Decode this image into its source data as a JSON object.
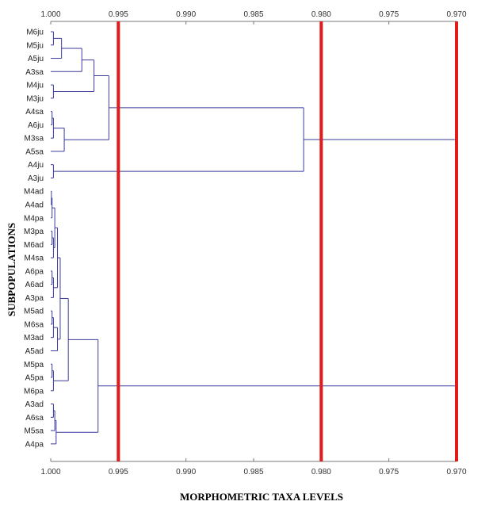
{
  "chart_data": {
    "type": "dendrogram",
    "xlabel": "MORPHOMETRIC TAXA LEVELS",
    "ylabel": "SUBPOPULATIONS",
    "xlim": [
      1.0,
      0.97
    ],
    "x_ticks": [
      "1.000",
      "0.995",
      "0.990",
      "0.985",
      "0.980",
      "0.975",
      "0.970"
    ],
    "leaves": [
      "M6ju",
      "M5ju",
      "A5ju",
      "A3sa",
      "M4ju",
      "M3ju",
      "A4sa",
      "A6ju",
      "M3sa",
      "A5sa",
      "A4ju",
      "A3ju",
      "M4ad",
      "A4ad",
      "M4pa",
      "M3pa",
      "M6ad",
      "M4sa",
      "A6pa",
      "A6ad",
      "A3pa",
      "M5ad",
      "M6sa",
      "M3ad",
      "A5ad",
      "M5pa",
      "A5pa",
      "M6pa",
      "A3ad",
      "A6sa",
      "M5sa",
      "A4pa"
    ],
    "merges": [
      {
        "id": "c1",
        "children": [
          "M6ju",
          "M5ju"
        ],
        "height": 0.9998
      },
      {
        "id": "c2",
        "children": [
          "c1",
          "A5ju"
        ],
        "height": 0.9992
      },
      {
        "id": "c3",
        "children": [
          "c2",
          "A3sa"
        ],
        "height": 0.9977
      },
      {
        "id": "c4",
        "children": [
          "M4ju",
          "M3ju"
        ],
        "height": 0.9998
      },
      {
        "id": "c5",
        "children": [
          "c3",
          "c4"
        ],
        "height": 0.9968
      },
      {
        "id": "c6",
        "children": [
          "A4sa",
          "A6ju"
        ],
        "height": 0.9999
      },
      {
        "id": "c7",
        "children": [
          "c6",
          "M3sa"
        ],
        "height": 0.9998
      },
      {
        "id": "c8",
        "children": [
          "c7",
          "A5sa"
        ],
        "height": 0.999
      },
      {
        "id": "c9",
        "children": [
          "c5",
          "c8"
        ],
        "height": 0.9957
      },
      {
        "id": "c10",
        "children": [
          "A4ju",
          "A3ju"
        ],
        "height": 0.9998
      },
      {
        "id": "c11",
        "children": [
          "c9",
          "c10"
        ],
        "height": 0.9813
      },
      {
        "id": "d1",
        "children": [
          "M4ad",
          "A4ad"
        ],
        "height": 0.99995
      },
      {
        "id": "d2",
        "children": [
          "d1",
          "M4pa"
        ],
        "height": 0.9999
      },
      {
        "id": "d3",
        "children": [
          "M3pa",
          "M6ad"
        ],
        "height": 0.9999
      },
      {
        "id": "d4",
        "children": [
          "d3",
          "M4sa"
        ],
        "height": 0.9998
      },
      {
        "id": "d5",
        "children": [
          "d2",
          "d4"
        ],
        "height": 0.9997
      },
      {
        "id": "d6",
        "children": [
          "A6pa",
          "A6ad"
        ],
        "height": 0.9999
      },
      {
        "id": "d7",
        "children": [
          "d6",
          "A3pa"
        ],
        "height": 0.9998
      },
      {
        "id": "d8",
        "children": [
          "d5",
          "d7"
        ],
        "height": 0.9995
      },
      {
        "id": "d9",
        "children": [
          "M5ad",
          "M6sa"
        ],
        "height": 0.9999
      },
      {
        "id": "d10",
        "children": [
          "d9",
          "M3ad"
        ],
        "height": 0.9998
      },
      {
        "id": "d11",
        "children": [
          "d10",
          "A5ad"
        ],
        "height": 0.9995
      },
      {
        "id": "d12",
        "children": [
          "d8",
          "d11"
        ],
        "height": 0.9993
      },
      {
        "id": "d13",
        "children": [
          "M5pa",
          "A5pa"
        ],
        "height": 0.9999
      },
      {
        "id": "d14",
        "children": [
          "d13",
          "M6pa"
        ],
        "height": 0.9998
      },
      {
        "id": "d15",
        "children": [
          "d12",
          "d14"
        ],
        "height": 0.9987
      },
      {
        "id": "d16",
        "children": [
          "A3ad",
          "A6sa"
        ],
        "height": 0.9998
      },
      {
        "id": "d17",
        "children": [
          "d16",
          "M5sa"
        ],
        "height": 0.9997
      },
      {
        "id": "d18",
        "children": [
          "d17",
          "A4pa"
        ],
        "height": 0.9996
      },
      {
        "id": "d19",
        "children": [
          "d15",
          "d18"
        ],
        "height": 0.9965
      },
      {
        "id": "root",
        "children": [
          "c11",
          "d19"
        ],
        "height": 0.97
      }
    ],
    "cutoff_lines": [
      0.995,
      0.98,
      0.97
    ],
    "colors": {
      "branch": "#3a3a9e",
      "cutoff": "#e01b1b",
      "axis": "#777777"
    }
  }
}
